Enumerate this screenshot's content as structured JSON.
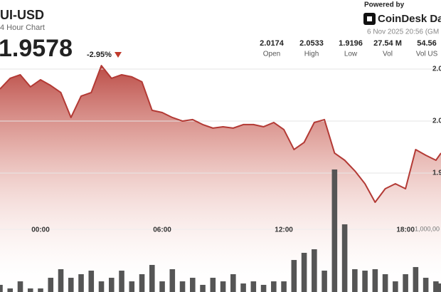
{
  "header": {
    "title": "UI-USD",
    "subtitle": "4 Hour Chart",
    "price": "1.9578",
    "change": "-2.95%",
    "stats": [
      {
        "value": "2.0174",
        "label": "Open"
      },
      {
        "value": "2.0533",
        "label": "High"
      },
      {
        "value": "1.9196",
        "label": "Low"
      },
      {
        "value": "27.54 M",
        "label": "Vol"
      },
      {
        "value": "54.56",
        "label": "Vol US"
      }
    ],
    "powered": "Powered by",
    "brand": "CoinDesk Dat",
    "date": "6 Nov 2025 20:56 (GM"
  },
  "chart_data": {
    "type": "line",
    "x": [
      -2,
      -1.5,
      -1,
      -0.5,
      0,
      0.5,
      1,
      1.5,
      2,
      2.5,
      3,
      3.5,
      4,
      4.5,
      5,
      5.5,
      6,
      6.5,
      7,
      7.5,
      8,
      8.5,
      9,
      9.5,
      10,
      10.5,
      11,
      11.5,
      12,
      12.5,
      13,
      13.5,
      14,
      14.5,
      15,
      15.5,
      16,
      16.5,
      17,
      17.5,
      18,
      18.5,
      19,
      19.5,
      19.75
    ],
    "series": [
      {
        "name": "Price",
        "color": "#b33a35",
        "values": [
          2.0308,
          2.0411,
          2.0445,
          2.0329,
          2.0397,
          2.0342,
          2.0274,
          2.0034,
          2.024,
          2.0274,
          2.0533,
          2.0411,
          2.0445,
          2.0425,
          2.0377,
          2.0103,
          2.0082,
          2.0034,
          2.0,
          2.0014,
          1.9966,
          1.9932,
          1.9945,
          1.9932,
          1.9966,
          1.9966,
          1.9945,
          1.9986,
          1.9918,
          1.9726,
          1.9795,
          1.9986,
          2.0014,
          1.9692,
          1.9623,
          1.9521,
          1.9397,
          1.9219,
          1.9349,
          1.9397,
          1.9349,
          1.9726,
          1.9671,
          1.9623,
          1.9692
        ]
      },
      {
        "name": "Volume",
        "color": "#555555",
        "axis": "y2",
        "type": "bar",
        "values": [
          114000,
          57000,
          170000,
          57000,
          57000,
          227000,
          364000,
          227000,
          284000,
          341000,
          170000,
          227000,
          341000,
          170000,
          284000,
          432000,
          170000,
          364000,
          170000,
          227000,
          114000,
          227000,
          170000,
          284000,
          136000,
          170000,
          114000,
          170000,
          170000,
          511000,
          625000,
          682000,
          341000,
          1955000,
          1080000,
          364000,
          341000,
          364000,
          284000,
          170000,
          284000,
          398000,
          227000,
          170000,
          136000
        ]
      }
    ],
    "xlim": [
      -2,
      19.75
    ],
    "xticks": [
      {
        "value": 0,
        "label": "00:00"
      },
      {
        "value": 6,
        "label": "06:00"
      },
      {
        "value": 12,
        "label": "12:00"
      },
      {
        "value": 18,
        "label": "18:00"
      }
    ],
    "ylim": [
      1.8356,
      2.0753
    ],
    "yticks": [
      {
        "value": 2.05,
        "label": "2.0"
      },
      {
        "value": 2.0,
        "label": "2.0"
      },
      {
        "value": 1.95,
        "label": "1.9"
      }
    ],
    "y2lim": [
      0,
      3977000
    ],
    "y2ticks": [
      {
        "value": 1000000,
        "label": "1,000,00"
      }
    ],
    "grid": true
  }
}
